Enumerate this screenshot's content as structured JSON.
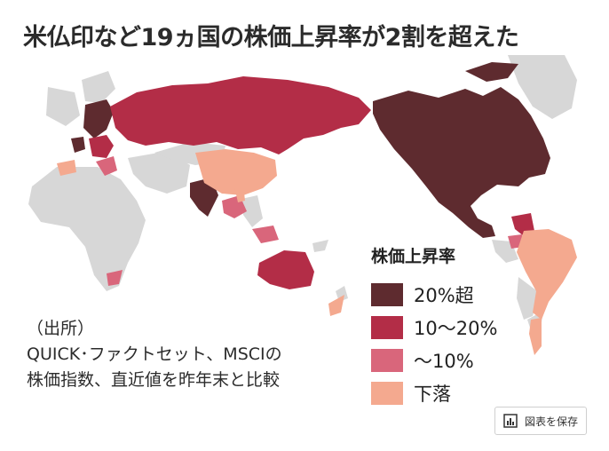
{
  "title": "米仏印など19ヵ国の株価上昇率が2割を超えた",
  "legend": {
    "title": "株価上昇率",
    "items": [
      {
        "label": "20%超",
        "color": "#5e2b2f"
      },
      {
        "label": "10～20%",
        "color": "#b32d47"
      },
      {
        "label": "～10%",
        "color": "#d9667b"
      },
      {
        "label": "下落",
        "color": "#f4a98f"
      }
    ],
    "no_data_color": "#d7d7d7"
  },
  "source": {
    "line1": "（出所）",
    "line2": "QUICK･ファクトセット、MSCIの",
    "line3": "株価指数、直近値を昨年末と比較"
  },
  "save_button": {
    "label": "図表を保存",
    "icon": "bar-chart-icon"
  }
}
